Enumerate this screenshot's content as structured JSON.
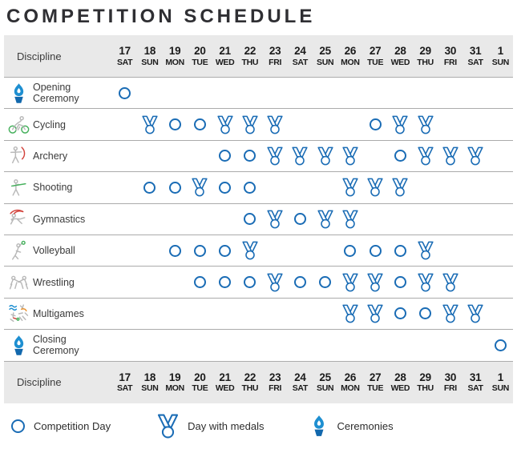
{
  "title": "COMPETITION SCHEDULE",
  "chart_data": {
    "type": "table",
    "title": "COMPETITION SCHEDULE",
    "header_label": "Discipline",
    "columns": [
      {
        "day": "17",
        "weekday": "SAT"
      },
      {
        "day": "18",
        "weekday": "SUN"
      },
      {
        "day": "19",
        "weekday": "MON"
      },
      {
        "day": "20",
        "weekday": "TUE"
      },
      {
        "day": "21",
        "weekday": "WED"
      },
      {
        "day": "22",
        "weekday": "THU"
      },
      {
        "day": "23",
        "weekday": "FRI"
      },
      {
        "day": "24",
        "weekday": "SAT"
      },
      {
        "day": "25",
        "weekday": "SUN"
      },
      {
        "day": "26",
        "weekday": "MON"
      },
      {
        "day": "27",
        "weekday": "TUE"
      },
      {
        "day": "28",
        "weekday": "WED"
      },
      {
        "day": "29",
        "weekday": "THU"
      },
      {
        "day": "30",
        "weekday": "FRI"
      },
      {
        "day": "31",
        "weekday": "SAT"
      },
      {
        "day": "1",
        "weekday": "SUN"
      }
    ],
    "rows": [
      {
        "name": "Opening Ceremony",
        "icon": "torch-icon",
        "markers": {
          "17": "competition"
        }
      },
      {
        "name": "Cycling",
        "icon": "cycling-icon",
        "markers": {
          "18": "medals",
          "19": "competition",
          "20": "competition",
          "21": "medals",
          "22": "medals",
          "23": "medals",
          "27": "competition",
          "28": "medals",
          "29": "medals"
        }
      },
      {
        "name": "Archery",
        "icon": "archery-icon",
        "markers": {
          "21": "competition",
          "22": "competition",
          "23": "medals",
          "24": "medals",
          "25": "medals",
          "26": "medals",
          "28": "competition",
          "29": "medals",
          "30": "medals",
          "31": "medals"
        }
      },
      {
        "name": "Shooting",
        "icon": "shooting-icon",
        "markers": {
          "18": "competition",
          "19": "competition",
          "20": "medals",
          "21": "competition",
          "22": "competition",
          "26": "medals",
          "27": "medals",
          "28": "medals"
        }
      },
      {
        "name": "Gymnastics",
        "icon": "gymnastics-icon",
        "markers": {
          "22": "competition",
          "23": "medals",
          "24": "competition",
          "25": "medals",
          "26": "medals"
        }
      },
      {
        "name": "Volleyball",
        "icon": "volleyball-icon",
        "markers": {
          "19": "competition",
          "20": "competition",
          "21": "competition",
          "22": "medals",
          "26": "competition",
          "27": "competition",
          "28": "competition",
          "29": "medals"
        }
      },
      {
        "name": "Wrestling",
        "icon": "wrestling-icon",
        "markers": {
          "20": "competition",
          "21": "competition",
          "22": "competition",
          "23": "medals",
          "24": "competition",
          "25": "competition",
          "26": "medals",
          "27": "medals",
          "28": "competition",
          "29": "medals",
          "30": "medals"
        }
      },
      {
        "name": "Multigames",
        "icon": "multigames-icon",
        "markers": {
          "26": "medals",
          "27": "medals",
          "28": "competition",
          "29": "competition",
          "30": "medals",
          "31": "medals"
        }
      },
      {
        "name": "Closing Ceremony",
        "icon": "torch-icon",
        "markers": {
          "1": "competition"
        }
      }
    ]
  },
  "legend": {
    "competition_day": "Competition Day",
    "day_with_medals": "Day with medals",
    "ceremonies": "Ceremonies"
  },
  "colors": {
    "marker_blue": "#1a6cb5",
    "flame_blue": "#1e8fd1",
    "flame_base": "#1268ad",
    "pictogram_gray": "#b9b9b9",
    "accent_green": "#45b05c",
    "accent_red": "#d2413a",
    "accent_orange": "#e8912d",
    "header_bg": "#e9e9e9",
    "title_color": "#2f2f33"
  }
}
